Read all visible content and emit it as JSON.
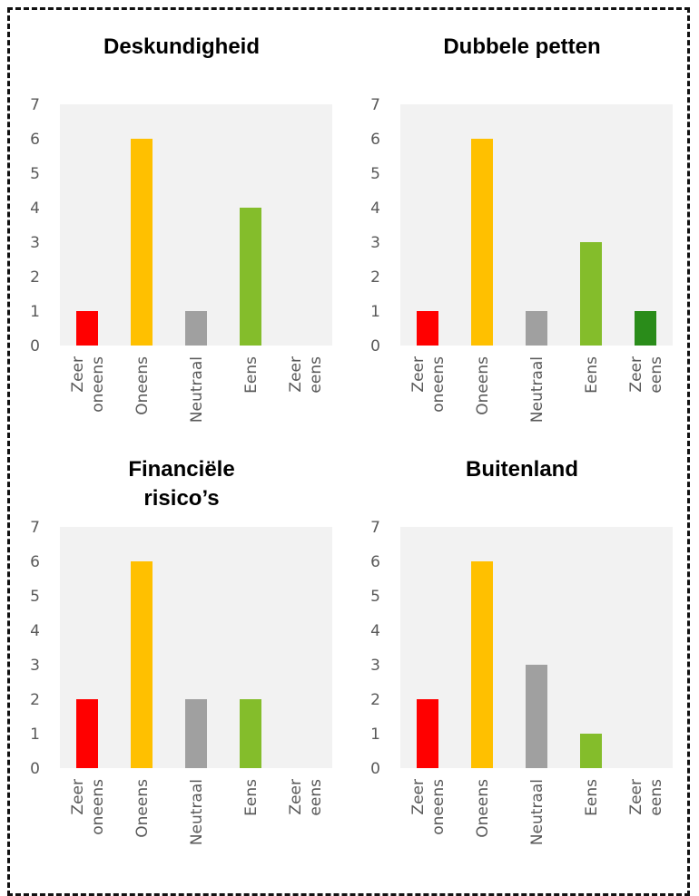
{
  "heading": "",
  "chart_data": [
    {
      "type": "bar",
      "title": "Deskundigheid",
      "categories": [
        "Zeer oneens",
        "Oneens",
        "Neutraal",
        "Eens",
        "Zeer eens"
      ],
      "values": [
        1,
        6,
        1,
        4,
        0
      ],
      "ylim": [
        0,
        7
      ],
      "yticks": [
        0,
        1,
        2,
        3,
        4,
        5,
        6,
        7
      ],
      "colors": [
        "#ff0000",
        "#ffc000",
        "#a0a0a0",
        "#84bd2b",
        "#2a8c1a"
      ],
      "plot_background": "#f2f2f2"
    },
    {
      "type": "bar",
      "title": "Dubbele petten",
      "categories": [
        "Zeer oneens",
        "Oneens",
        "Neutraal",
        "Eens",
        "Zeer eens"
      ],
      "values": [
        1,
        6,
        1,
        3,
        1
      ],
      "ylim": [
        0,
        7
      ],
      "yticks": [
        0,
        1,
        2,
        3,
        4,
        5,
        6,
        7
      ],
      "colors": [
        "#ff0000",
        "#ffc000",
        "#a0a0a0",
        "#84bd2b",
        "#2a8c1a"
      ],
      "plot_background": "#f2f2f2"
    },
    {
      "type": "bar",
      "title": "Financiële risico’s",
      "categories": [
        "Zeer oneens",
        "Oneens",
        "Neutraal",
        "Eens",
        "Zeer eens"
      ],
      "values": [
        2,
        6,
        2,
        2,
        0
      ],
      "ylim": [
        0,
        7
      ],
      "yticks": [
        0,
        1,
        2,
        3,
        4,
        5,
        6,
        7
      ],
      "colors": [
        "#ff0000",
        "#ffc000",
        "#a0a0a0",
        "#84bd2b",
        "#2a8c1a"
      ],
      "plot_background": "#f2f2f2"
    },
    {
      "type": "bar",
      "title": "Buitenland",
      "categories": [
        "Zeer oneens",
        "Oneens",
        "Neutraal",
        "Eens",
        "Zeer eens"
      ],
      "values": [
        2,
        6,
        3,
        1,
        0
      ],
      "ylim": [
        0,
        7
      ],
      "yticks": [
        0,
        1,
        2,
        3,
        4,
        5,
        6,
        7
      ],
      "colors": [
        "#ff0000",
        "#ffc000",
        "#a0a0a0",
        "#84bd2b",
        "#2a8c1a"
      ],
      "plot_background": "#f2f2f2"
    }
  ]
}
